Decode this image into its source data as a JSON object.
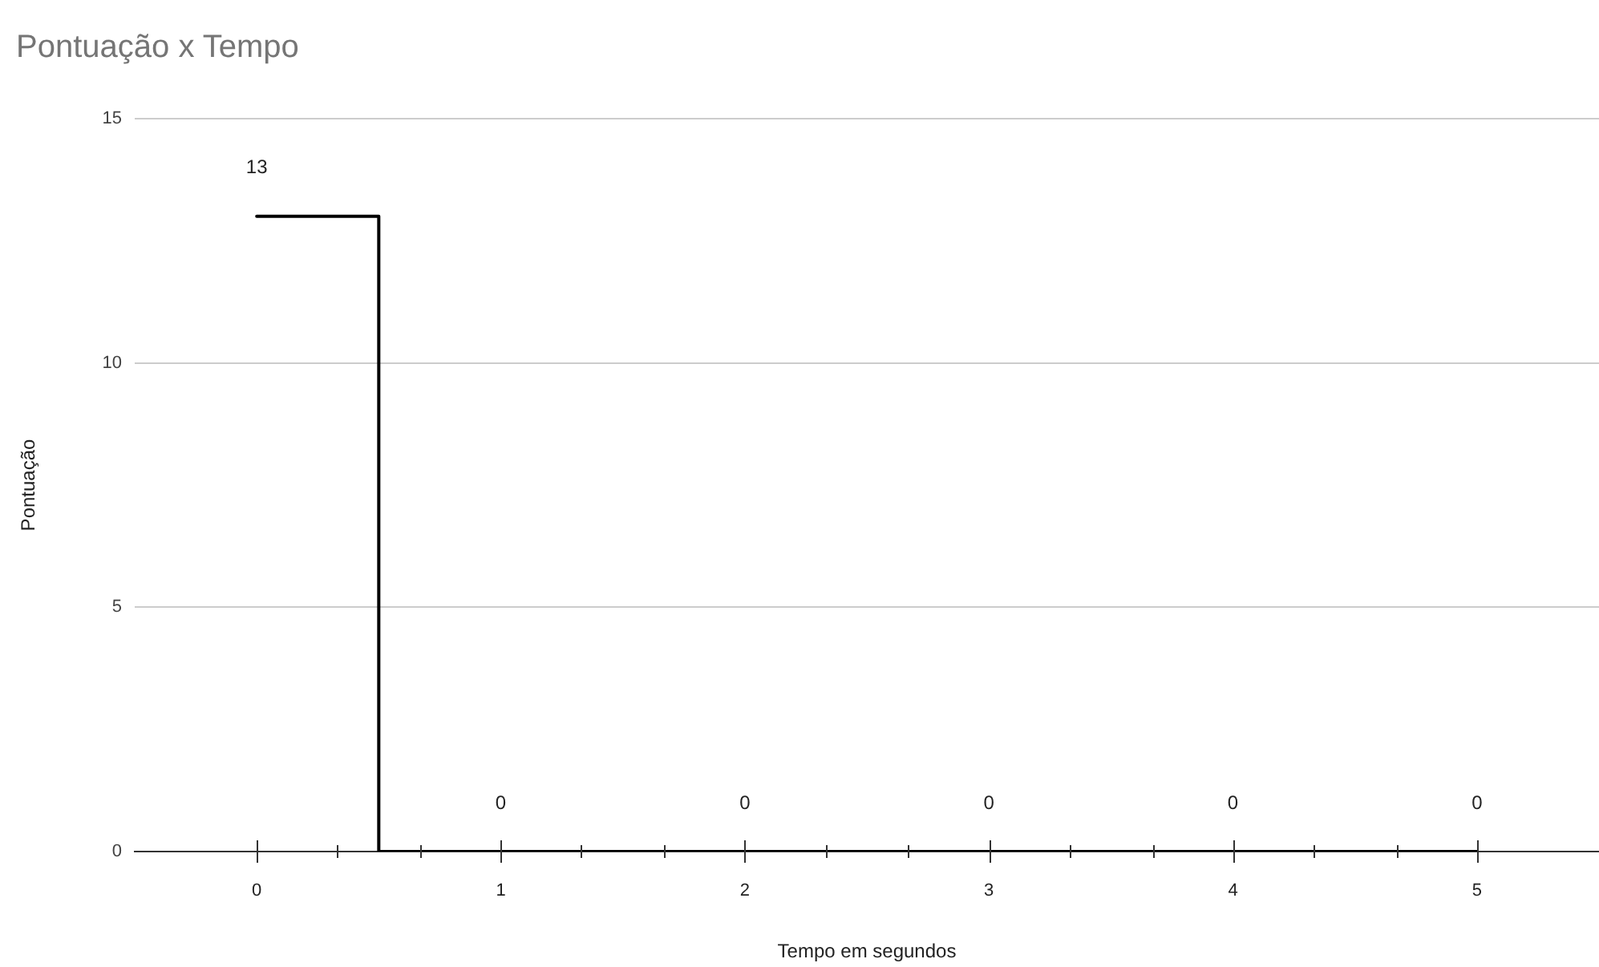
{
  "chart_data": {
    "type": "step",
    "title": "Pontuação x Tempo",
    "xlabel": "Tempo em segundos",
    "ylabel": "Pontuação",
    "x": [
      0,
      1,
      2,
      3,
      4,
      5
    ],
    "values": [
      13,
      0,
      0,
      0,
      0,
      0
    ],
    "color": "#000000",
    "xlim": [
      -0.5,
      5.5
    ],
    "xticks": [
      0,
      {
        "value": 0.33,
        "label": null
      },
      {
        "value": 0.67,
        "label": null
      },
      1,
      {
        "value": 1.33,
        "label": null
      },
      {
        "value": 1.67,
        "label": null
      },
      2,
      {
        "value": 2.33,
        "label": null
      },
      {
        "value": 2.67,
        "label": null
      },
      3,
      {
        "value": 3.33,
        "label": null
      },
      {
        "value": 3.67,
        "label": null
      },
      4,
      {
        "value": 4.33,
        "label": null
      },
      {
        "value": 4.67,
        "label": null
      },
      5
    ],
    "ylim": [
      0,
      15
    ],
    "yticks": [
      0,
      5,
      10,
      15
    ],
    "grid": "y",
    "data_labels": true,
    "marker": "none",
    "line_style": "solid"
  }
}
